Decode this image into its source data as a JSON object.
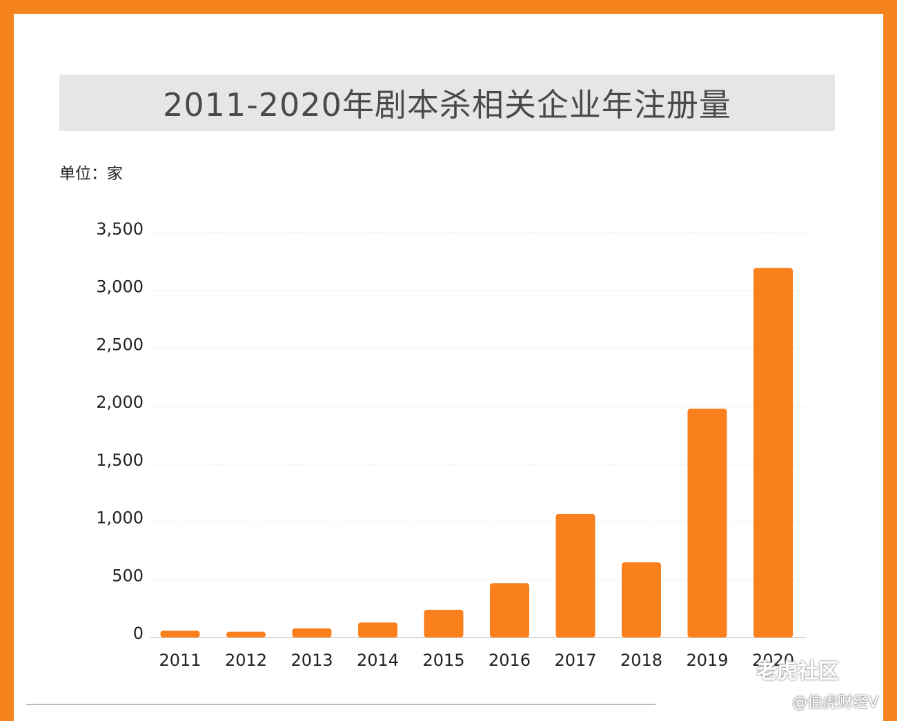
{
  "chart_data": {
    "type": "bar",
    "title": "2011-2020年剧本杀相关企业年注册量",
    "unit_label": "单位：家",
    "categories": [
      "2011",
      "2012",
      "2013",
      "2014",
      "2015",
      "2016",
      "2017",
      "2018",
      "2019",
      "2020"
    ],
    "values": [
      60,
      50,
      80,
      130,
      240,
      470,
      1070,
      650,
      1980,
      3200
    ],
    "ylim": [
      0,
      3500
    ],
    "yticks": [
      0,
      500,
      1000,
      1500,
      2000,
      2500,
      3000,
      3500
    ],
    "ytick_labels": [
      "0",
      "500",
      "1,000",
      "1,500",
      "2,000",
      "2,500",
      "3,000",
      "3,500"
    ],
    "grid": true,
    "bar_color": "#fa7f1d",
    "legend": "none"
  },
  "watermarks": {
    "site": "老虎社区",
    "account": "@伯虎财经V"
  },
  "colors": {
    "frame": "#f5841f",
    "bar": "#fa7f1d",
    "title_bg": "#e6e6e6"
  }
}
